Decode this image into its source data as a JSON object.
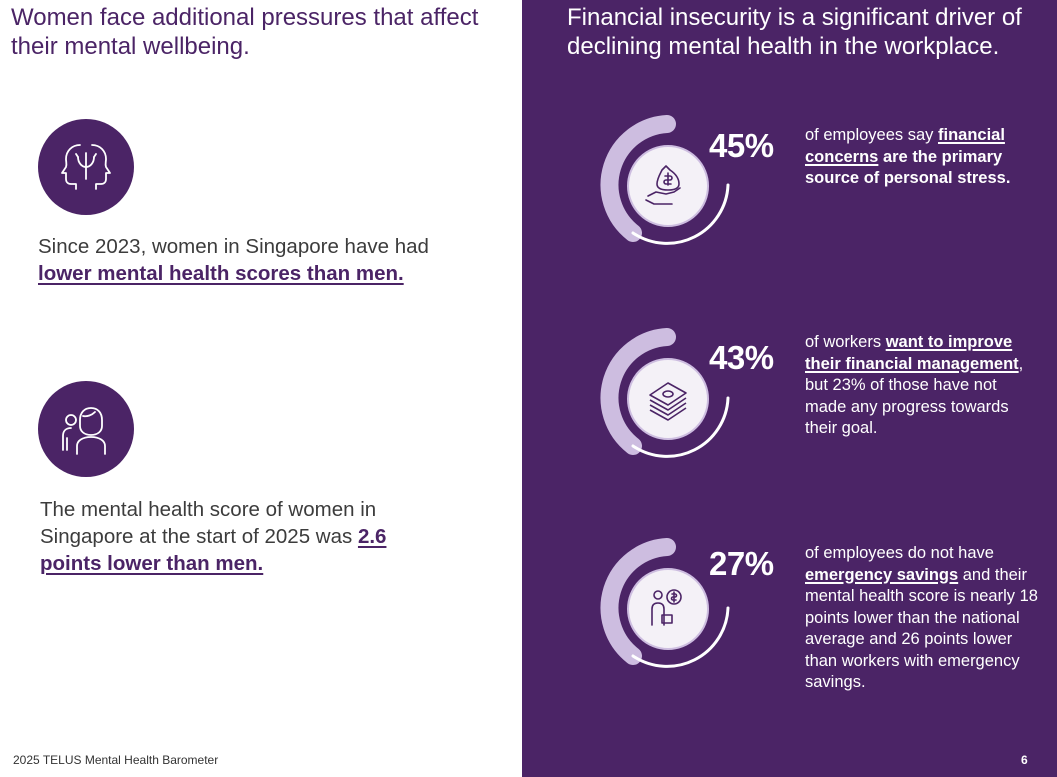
{
  "left": {
    "title": "Women face additional pressures that affect their mental wellbeing.",
    "stat1": {
      "icon": "mind-head-icon",
      "text_before": "Since 2023, women in Singapore have had ",
      "text_bold": "lower mental health scores than men."
    },
    "stat2": {
      "icon": "woman-people-icon",
      "text_before": "The mental health score of women in Singapore at the start of 2025 was ",
      "text_bold": "2.6 points lower than men."
    },
    "footer": "2025 TELUS Mental Health Barometer"
  },
  "right": {
    "title": "Financial insecurity is a significant driver of declining mental health in the workplace.",
    "stats": [
      {
        "percent": "45%",
        "value": 45,
        "icon": "money-bag-hand-icon",
        "p1": "of employees say ",
        "b1": "financial concerns",
        "p2": "",
        "b2": " are the primary source of personal stress.",
        "p3": ""
      },
      {
        "percent": "43%",
        "value": 43,
        "icon": "cash-stack-icon",
        "p1": "of workers ",
        "b1": "want to improve their financial management",
        "p2": ", but 23% of those have not made any progress towards their goal.",
        "b2": "",
        "p3": ""
      },
      {
        "percent": "27%",
        "value": 27,
        "icon": "person-dollar-icon",
        "p1": "of employees do not have ",
        "b1": "emergency savings",
        "p2": " and their mental health score is nearly 18 points lower than the national average and 26 points lower than workers with emergency savings.",
        "b2": "",
        "p3": ""
      }
    ],
    "page_number": "6"
  },
  "colors": {
    "purple": "#4b2466",
    "ring_light": "#cdbde0",
    "white": "#ffffff"
  }
}
